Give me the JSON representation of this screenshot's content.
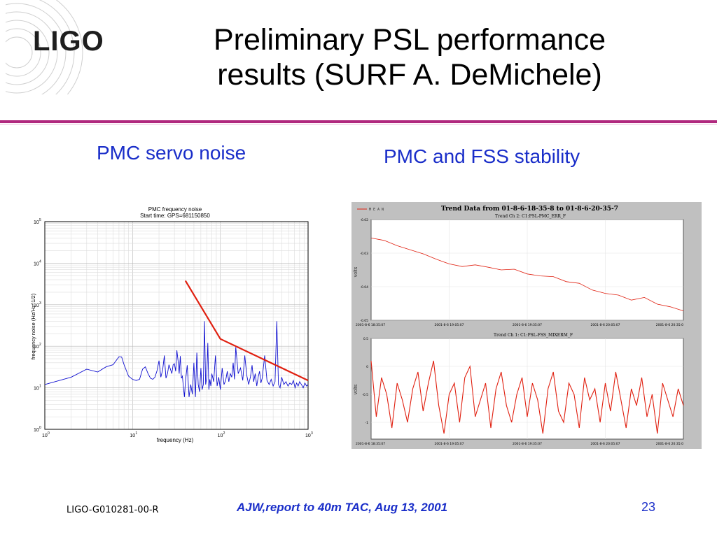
{
  "slide": {
    "logo_text": "LIGO",
    "title_line1": "Preliminary PSL performance",
    "title_line2": "results (SURF A. DeMichele)",
    "subtitle_left": "PMC servo noise",
    "subtitle_right": "PMC and FSS stability",
    "footer_left": "LIGO-G010281-00-R",
    "footer_center": "AJW,report to 40m TAC, Aug 13, 2001",
    "page_number": "23",
    "accent_color": "#b0287e",
    "text_blue": "#1a2ec9"
  },
  "chart_data": [
    {
      "type": "line",
      "title": "PMC frequency noise",
      "subtitle": "Start time: GPS=681150850",
      "xlabel": "frequency (Hz)",
      "ylabel": "frequency noise (Hz/Hz^1/2)",
      "xscale": "log",
      "yscale": "log",
      "xlim": [
        1,
        1000
      ],
      "ylim": [
        1,
        100000
      ],
      "grid": true,
      "x_ticks": [
        {
          "base": "10",
          "exp": "0"
        },
        {
          "base": "10",
          "exp": "1"
        },
        {
          "base": "10",
          "exp": "2"
        },
        {
          "base": "10",
          "exp": "3"
        }
      ],
      "y_ticks": [
        {
          "base": "10",
          "exp": "0"
        },
        {
          "base": "10",
          "exp": "1"
        },
        {
          "base": "10",
          "exp": "2"
        },
        {
          "base": "10",
          "exp": "3"
        },
        {
          "base": "10",
          "exp": "4"
        },
        {
          "base": "10",
          "exp": "5"
        }
      ],
      "series": [
        {
          "color": "#1010d0",
          "x": [
            1,
            2,
            3,
            4,
            5,
            6,
            7,
            7.5,
            8,
            9,
            10,
            11,
            12,
            13,
            14,
            15,
            16,
            17,
            18,
            19,
            20,
            21,
            22,
            23,
            24,
            25,
            26,
            27,
            28,
            29,
            30,
            31,
            32,
            33,
            34,
            35,
            36,
            37,
            38,
            39,
            40,
            42,
            44,
            46,
            48,
            50,
            52,
            54,
            56,
            58,
            60,
            62,
            64,
            66,
            68,
            70,
            72,
            74,
            76,
            78,
            80,
            84,
            88,
            92,
            96,
            100,
            105,
            110,
            115,
            120,
            125,
            130,
            135,
            140,
            145,
            150,
            160,
            170,
            180,
            190,
            200,
            210,
            220,
            230,
            240,
            250,
            260,
            270,
            280,
            290,
            300,
            320,
            340,
            360,
            380,
            400,
            420,
            440,
            460,
            480,
            500,
            530,
            560,
            590,
            620,
            650,
            680,
            710,
            740,
            770,
            800,
            840,
            880,
            920,
            960,
            1000
          ],
          "y": [
            12,
            18,
            28,
            24,
            32,
            36,
            56,
            55,
            36,
            19,
            16,
            15,
            16,
            28,
            32,
            22,
            17,
            16,
            18,
            26,
            45,
            18,
            27,
            60,
            17,
            22,
            36,
            28,
            22,
            36,
            38,
            25,
            80,
            45,
            22,
            58,
            17,
            19,
            10,
            6,
            14,
            35,
            6,
            12,
            7,
            40,
            6,
            70,
            12,
            8,
            30,
            9,
            12,
            400,
            12,
            18,
            120,
            9,
            16,
            11,
            22,
            14,
            60,
            11,
            18,
            9,
            30,
            12,
            15,
            25,
            14,
            22,
            18,
            40,
            16,
            95,
            22,
            30,
            15,
            60,
            20,
            12,
            18,
            35,
            14,
            22,
            11,
            18,
            25,
            13,
            17,
            60,
            15,
            12,
            16,
            11,
            14,
            400,
            12,
            10,
            18,
            12,
            14,
            11,
            13,
            12,
            15,
            10,
            13,
            11,
            14,
            12,
            10,
            13,
            11,
            12
          ]
        },
        {
          "color": "#e02010",
          "x": [
            40,
            100,
            1000
          ],
          "y": [
            3800,
            150,
            15
          ]
        }
      ]
    },
    {
      "type": "line",
      "title": "Trend Data from 01-8-6-18-35-8 to 01-8-6-20-35-7",
      "legend": "M E A N",
      "panels": [
        {
          "title": "Trend Ch 2: C1:PSL-PMC_ERR_F",
          "ylabel": "volts",
          "y_ticks": [
            "-0.02",
            "-0.03",
            "-0.04",
            "-0.05"
          ],
          "x_ticks": [
            "2001-8-6 18:35:07",
            "2001-8-6 19:05:07",
            "2001-8-6 19:35:07",
            "2001-8-6 20:05:07",
            "2001-8-6 20:35:0"
          ],
          "ylim": [
            -0.05,
            -0.02
          ],
          "x": [
            0,
            5,
            10,
            15,
            20,
            25,
            30,
            35,
            40,
            45,
            50,
            55,
            60,
            65,
            70,
            75,
            80,
            85,
            90,
            95,
            100,
            105,
            110,
            115,
            120
          ],
          "values": [
            -0.0255,
            -0.0262,
            -0.0278,
            -0.029,
            -0.0302,
            -0.0318,
            -0.0332,
            -0.034,
            -0.0335,
            -0.0342,
            -0.035,
            -0.0348,
            -0.0362,
            -0.0368,
            -0.037,
            -0.0385,
            -0.039,
            -0.041,
            -0.042,
            -0.0425,
            -0.044,
            -0.0432,
            -0.0452,
            -0.046,
            -0.0472
          ]
        },
        {
          "title": "Trend Ch 1: C1:PSL-FSS_MIXERM_F",
          "ylabel": "volts",
          "y_ticks": [
            "0.5",
            "0",
            "-0.5",
            "-1"
          ],
          "x_ticks": [
            "2001-8-6 18:35:07",
            "2001-8-6 19:05:07",
            "2001-8-6 19:35:07",
            "2001-8-6 20:05:07",
            "2001-8-6 20:35:0"
          ],
          "ylim": [
            -1.3,
            0.5
          ],
          "x": [
            0,
            2,
            4,
            6,
            8,
            10,
            12,
            14,
            16,
            18,
            20,
            22,
            24,
            26,
            28,
            30,
            32,
            34,
            36,
            38,
            40,
            42,
            44,
            46,
            48,
            50,
            52,
            54,
            56,
            58,
            60,
            62,
            64,
            66,
            68,
            70,
            72,
            74,
            76,
            78,
            80,
            82,
            84,
            86,
            88,
            90,
            92,
            94,
            96,
            98,
            100,
            102,
            104,
            106,
            108,
            110,
            112,
            114,
            116,
            118,
            120
          ],
          "values": [
            0.1,
            -0.9,
            -0.2,
            -0.5,
            -1.1,
            -0.3,
            -0.6,
            -1.0,
            -0.4,
            -0.1,
            -0.8,
            -0.3,
            0.1,
            -0.7,
            -1.2,
            -0.5,
            -0.3,
            -1.0,
            -0.2,
            0.0,
            -0.9,
            -0.6,
            -0.3,
            -1.1,
            -0.4,
            -0.1,
            -0.7,
            -1.0,
            -0.5,
            -0.2,
            -0.9,
            -0.3,
            -0.6,
            -1.2,
            -0.4,
            -0.1,
            -0.8,
            -1.0,
            -0.3,
            -0.5,
            -1.1,
            -0.2,
            -0.6,
            -0.4,
            -1.0,
            -0.3,
            -0.8,
            -0.1,
            -0.6,
            -1.1,
            -0.4,
            -0.7,
            -0.2,
            -0.9,
            -0.5,
            -1.2,
            -0.3,
            -0.6,
            -0.9,
            -0.4,
            -0.7
          ]
        }
      ]
    }
  ]
}
